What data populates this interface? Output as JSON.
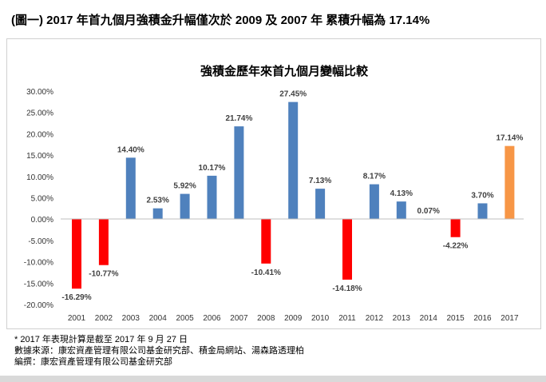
{
  "heading": "(圖一) 2017 年首九個月強積金升幅僅次於 2009 及 2007 年  累積升幅為 17.14%",
  "chart_data": {
    "type": "bar",
    "title": "強積金歷年來首九個月變幅比較",
    "categories": [
      "2001",
      "2002",
      "2003",
      "2004",
      "2005",
      "2006",
      "2007",
      "2008",
      "2009",
      "2010",
      "2011",
      "2012",
      "2013",
      "2014",
      "2015",
      "2016",
      "2017"
    ],
    "values": [
      -16.29,
      -10.77,
      14.4,
      2.53,
      5.92,
      10.17,
      21.74,
      -10.41,
      27.45,
      7.13,
      -14.18,
      8.17,
      4.13,
      0.07,
      -4.22,
      3.7,
      17.14
    ],
    "labels": [
      "-16.29%",
      "-10.77%",
      "14.40%",
      "2.53%",
      "5.92%",
      "10.17%",
      "21.74%",
      "-10.41%",
      "27.45%",
      "7.13%",
      "-14.18%",
      "8.17%",
      "4.13%",
      "0.07%",
      "-4.22%",
      "3.70%",
      "17.14%"
    ],
    "ylim": [
      -20,
      30
    ],
    "yticks": [
      "30.00%",
      "25.00%",
      "20.00%",
      "15.00%",
      "10.00%",
      "5.00%",
      "0.00%",
      "-5.00%",
      "-10.00%",
      "-15.00%",
      "-20.00%"
    ],
    "grid": false,
    "colors": {
      "positive": "#4f81bd",
      "negative": "#ff0000",
      "highlight": "#f79646"
    },
    "highlight_category": "2017"
  },
  "notes": [
    "* 2017 年表現計算是截至 2017 年 9 月 27 日",
    "數據來源：康宏資產管理有限公司基金研究部、積金局網站、湯森路透理柏",
    "編撰：康宏資產管理有限公司基金研究部"
  ]
}
